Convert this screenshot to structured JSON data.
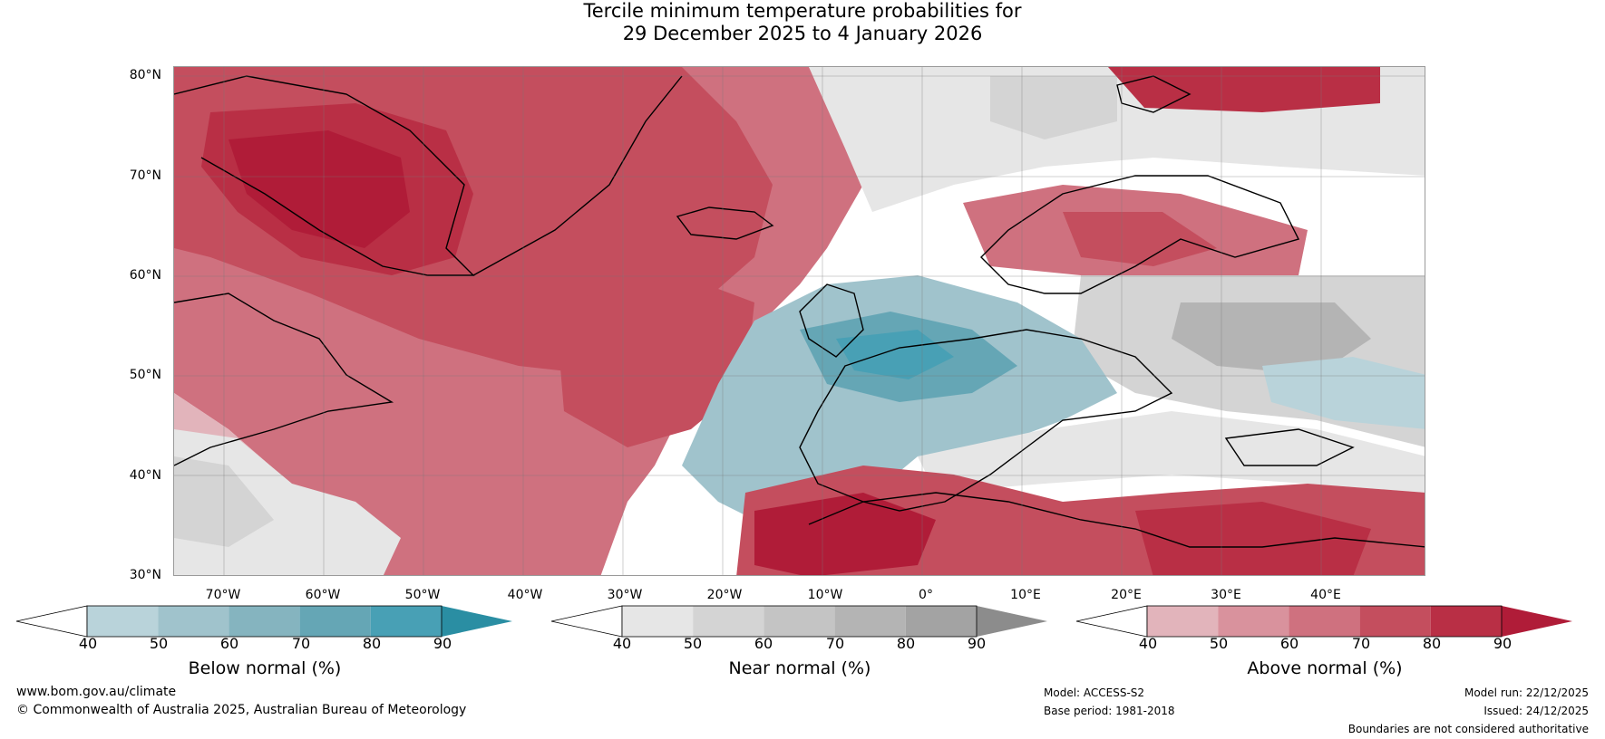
{
  "title": {
    "line1": "Tercile minimum temperature probabilities for",
    "line2": "29 December 2025 to 4 January 2026"
  },
  "axes": {
    "lat_labels": [
      "80°N",
      "70°N",
      "60°N",
      "50°N",
      "40°N",
      "30°N"
    ],
    "lon_labels": [
      "70°W",
      "60°W",
      "50°W",
      "40°W",
      "30°W",
      "20°W",
      "10°W",
      "0°",
      "10°E",
      "20°E",
      "30°E",
      "40°E"
    ]
  },
  "colorbars": [
    {
      "name": "Below normal (%)",
      "ticks": [
        "40",
        "50",
        "60",
        "70",
        "80",
        "90"
      ],
      "colors": [
        "#ffffff",
        "#b9d3da",
        "#a0c3cc",
        "#85b4bf",
        "#65a6b5",
        "#48a0b5",
        "#2a8ea3"
      ]
    },
    {
      "name": "Near normal (%)",
      "ticks": [
        "40",
        "50",
        "60",
        "70",
        "80",
        "90"
      ],
      "colors": [
        "#ffffff",
        "#e6e6e6",
        "#d4d4d4",
        "#c4c4c4",
        "#b4b4b4",
        "#a3a3a3",
        "#8c8c8c"
      ]
    },
    {
      "name": "Above normal (%)",
      "ticks": [
        "40",
        "50",
        "60",
        "70",
        "80",
        "90"
      ],
      "colors": [
        "#ffffff",
        "#e2b4bb",
        "#d9929d",
        "#cf717f",
        "#c44e5e",
        "#b92f45",
        "#b01c38"
      ]
    }
  ],
  "footer": {
    "website": "www.bom.gov.au/climate",
    "copyright": "© Commonwealth of Australia 2025, Australian Bureau of Meteorology",
    "model": "Model: ACCESS-S2",
    "base_period": "Base period: 1981-2018",
    "model_run": "Model run: 22/12/2025",
    "issued": "Issued: 24/12/2025",
    "disclaimer": "Boundaries are not considered authoritative"
  }
}
